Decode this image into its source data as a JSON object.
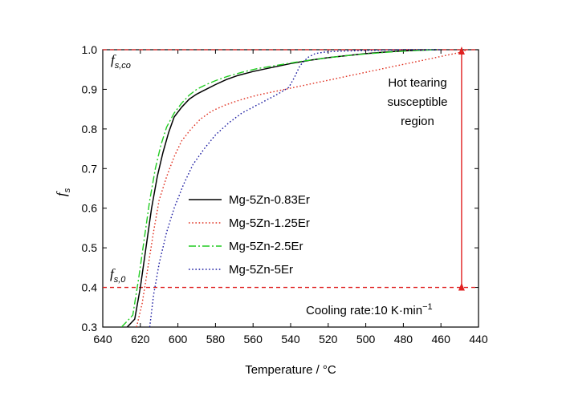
{
  "chart_data": {
    "type": "line",
    "xlabel": "Temperature / °C",
    "ylabel": "f_s",
    "ylabel_main": "f",
    "ylabel_sub": "s",
    "xlim": [
      640,
      440
    ],
    "ylim": [
      0.3,
      1.0
    ],
    "x_reversed": true,
    "xticks": [
      640,
      620,
      600,
      580,
      560,
      540,
      520,
      500,
      480,
      460,
      440
    ],
    "yticks": [
      0.3,
      0.4,
      0.5,
      0.6,
      0.7,
      0.8,
      0.9,
      1.0
    ],
    "xtick_labels": [
      "640",
      "620",
      "600",
      "580",
      "560",
      "540",
      "520",
      "500",
      "480",
      "460",
      "440"
    ],
    "ytick_labels": [
      "0.3",
      "0.4",
      "0.5",
      "0.6",
      "0.7",
      "0.8",
      "0.9",
      "1.0"
    ],
    "grid": false,
    "legend_position": "center",
    "series": [
      {
        "name": "Mg-5Zn-0.83Er",
        "color": "#000000",
        "style": "solid",
        "x": [
          627,
          623,
          620,
          617,
          614,
          611,
          608,
          605,
          602,
          598,
          594,
          590,
          585,
          580,
          574,
          568,
          560,
          550,
          540,
          530,
          520,
          510,
          500,
          490,
          480,
          470,
          462
        ],
        "y": [
          0.3,
          0.32,
          0.4,
          0.5,
          0.6,
          0.68,
          0.74,
          0.79,
          0.83,
          0.855,
          0.875,
          0.888,
          0.9,
          0.912,
          0.925,
          0.935,
          0.945,
          0.955,
          0.965,
          0.973,
          0.98,
          0.985,
          0.99,
          0.994,
          0.997,
          0.999,
          1.0
        ]
      },
      {
        "name": "Mg-5Zn-1.25Er",
        "color": "#e03020",
        "style": "dotted",
        "x": [
          622,
          619,
          616,
          613,
          610,
          606,
          602,
          598,
          593,
          588,
          582,
          575,
          567,
          558,
          548,
          538,
          528,
          518,
          508,
          498,
          488,
          478,
          468,
          458,
          450,
          446
        ],
        "y": [
          0.3,
          0.36,
          0.45,
          0.54,
          0.62,
          0.68,
          0.73,
          0.77,
          0.8,
          0.825,
          0.845,
          0.86,
          0.873,
          0.885,
          0.895,
          0.905,
          0.915,
          0.925,
          0.935,
          0.945,
          0.955,
          0.965,
          0.975,
          0.985,
          0.993,
          1.0
        ]
      },
      {
        "name": "Mg-5Zn-2.5Er",
        "color": "#22cc22",
        "style": "dashdot",
        "x": [
          630,
          624,
          621,
          618,
          615,
          612,
          609,
          606,
          602,
          598,
          594,
          590,
          585,
          580,
          574,
          566,
          558,
          548,
          538,
          528,
          518,
          508,
          498,
          488,
          478,
          468,
          462
        ],
        "y": [
          0.3,
          0.33,
          0.42,
          0.52,
          0.62,
          0.7,
          0.76,
          0.805,
          0.84,
          0.865,
          0.885,
          0.9,
          0.912,
          0.922,
          0.932,
          0.943,
          0.952,
          0.96,
          0.968,
          0.975,
          0.981,
          0.986,
          0.99,
          0.994,
          0.997,
          0.999,
          1.0
        ]
      },
      {
        "name": "Mg-5Zn-5Er",
        "color": "#1a1aa0",
        "style": "dotted",
        "x": [
          615,
          613,
          610,
          606,
          602,
          597,
          592,
          586,
          580,
          573,
          566,
          558,
          550,
          545,
          541,
          538,
          535,
          531,
          527,
          522,
          516,
          508,
          500,
          490,
          480,
          470,
          460
        ],
        "y": [
          0.3,
          0.38,
          0.46,
          0.54,
          0.6,
          0.66,
          0.71,
          0.75,
          0.785,
          0.815,
          0.84,
          0.86,
          0.88,
          0.893,
          0.905,
          0.93,
          0.96,
          0.98,
          0.99,
          0.994,
          0.996,
          0.997,
          0.998,
          0.999,
          1.0,
          1.0,
          1.0
        ]
      }
    ],
    "reference_lines": [
      {
        "y": 1.0,
        "color": "#e02020",
        "style": "dashed"
      },
      {
        "y": 0.4,
        "color": "#e02020",
        "style": "dashed"
      }
    ],
    "arrow": {
      "x": 449,
      "y_from": 0.4,
      "y_to": 1.0,
      "color": "#e02020"
    },
    "annotations": {
      "fs_co_main": "f",
      "fs_co_sub": "s,co",
      "fs_0_main": "f",
      "fs_0_sub": "s,0",
      "region_lines": [
        "Hot tearing",
        "susceptible",
        "region"
      ],
      "cooling_rate": "Cooling rate:10 K·min",
      "cooling_rate_sup": "−1"
    }
  }
}
